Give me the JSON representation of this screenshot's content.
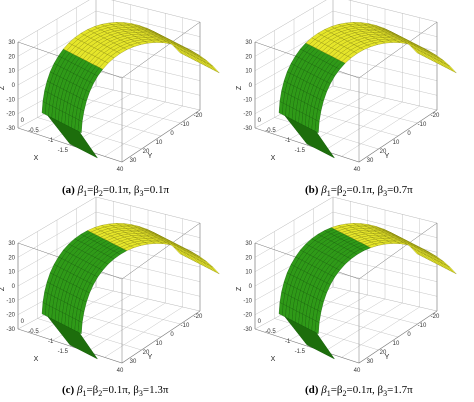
{
  "panels": [
    {
      "label": "(a)",
      "caption": "β1=β2=0.1π, β3=0.1π",
      "caption_parts": [
        "β",
        "1",
        "=β",
        "2",
        "=0.1π, β",
        "3",
        "=0.1π"
      ],
      "green_fraction": 0.3
    },
    {
      "label": "(b)",
      "caption": "β1=β2=0.1π, β3=0.7π",
      "caption_parts": [
        "β",
        "1",
        "=β",
        "2",
        "=0.1π, β",
        "3",
        "=0.7π"
      ],
      "green_fraction": 0.36
    },
    {
      "label": "(c)",
      "caption": "β1=β2=0.1π, β3=1.3π",
      "caption_parts": [
        "β",
        "1",
        "=β",
        "2",
        "=0.1π, β",
        "3",
        "=1.3π"
      ],
      "green_fraction": 0.46
    },
    {
      "label": "(d)",
      "caption": "β1=β2=0.1π, β3=1.7π",
      "caption_parts": [
        "β",
        "1",
        "=β",
        "2",
        "=0.1π, β",
        "3",
        "=1.7π"
      ],
      "green_fraction": 0.5
    }
  ],
  "axes": {
    "z_label": "Z",
    "y_label": "Y",
    "x_label": "X",
    "z_ticks": [
      "30",
      "20",
      "10",
      "0",
      "-10",
      "-20",
      "-30"
    ],
    "y_ticks": [
      "40",
      "30",
      "20",
      "10",
      "0",
      "-10",
      "-20"
    ],
    "x_ticks": [
      "0",
      "-0.5",
      "-1",
      "-1.5"
    ]
  },
  "colors": {
    "yellow_surface": "#e6e62a",
    "yellow_mesh": "#8a8a10",
    "green_surface": "#2f9a18",
    "green_mesh": "#156008",
    "green_dark": "#1d6e0c",
    "grid": "#b8b8b8",
    "box": "#777777"
  }
}
